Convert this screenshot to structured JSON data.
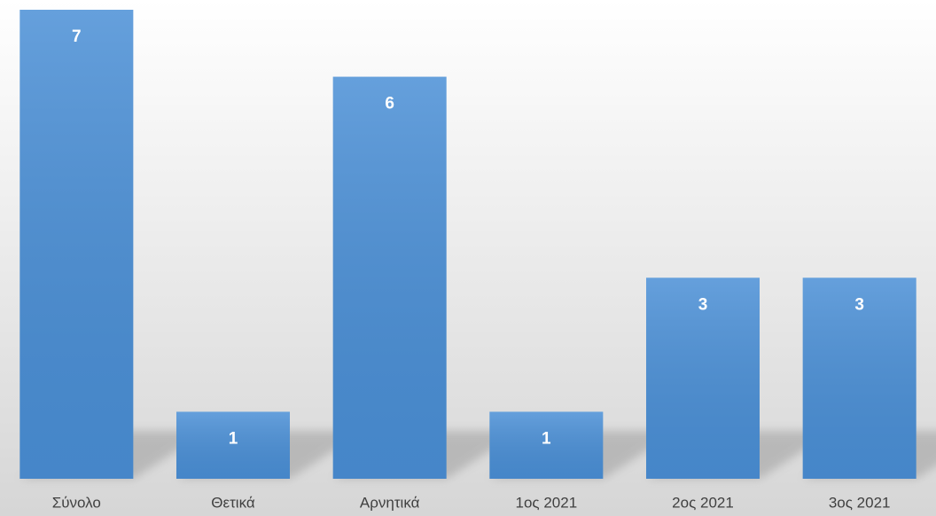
{
  "chart_data": {
    "type": "bar",
    "categories": [
      "Σύνολο",
      "Θετικά",
      "Αρνητικά",
      "1ος 2021",
      "2ος 2021",
      "3ος 2021"
    ],
    "values": [
      7,
      1,
      6,
      1,
      3,
      3
    ],
    "color": "#4a8fd6",
    "ylim": [
      0,
      7
    ]
  }
}
